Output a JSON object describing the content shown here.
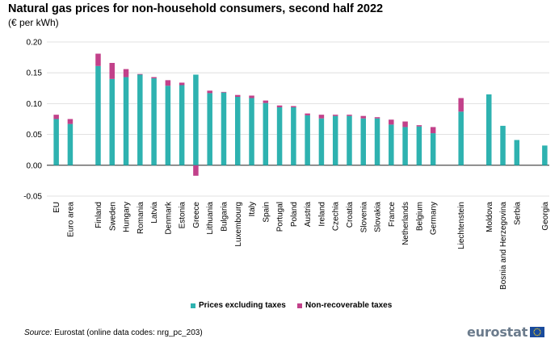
{
  "title": "Natural gas prices for non-household consumers, second half 2022",
  "subtitle": "(€ per kWh)",
  "source_label": "Source:",
  "source_text": " Eurostat (online data codes: nrg_pc_203)",
  "logo_text": "eurostat",
  "chart_data": {
    "type": "bar",
    "stacked": true,
    "ylim": [
      -0.05,
      0.2
    ],
    "yticks": [
      -0.05,
      0.0,
      0.05,
      0.1,
      0.15,
      0.2
    ],
    "ytick_labels": [
      "-0.05",
      "0.00",
      "0.05",
      "0.10",
      "0.15",
      "0.20"
    ],
    "grid": true,
    "legend_position": "bottom",
    "categories": [
      "EU",
      "Euro area",
      "",
      "Finland",
      "Sweden",
      "Hungary",
      "Romania",
      "Latvia",
      "Denmark",
      "Estonia",
      "Greece",
      "Lithuania",
      "Bulgaria",
      "Luxembourg",
      "Italy",
      "Spain",
      "Portugal",
      "Poland",
      "Austria",
      "Ireland",
      "Czechia",
      "Croatia",
      "Slovenia",
      "Slovakia",
      "France",
      "Netherlands",
      "Belgium",
      "Germany",
      "",
      "Liechtenstein",
      "",
      "Moldova",
      "Bosnia and Herzegovina",
      "Serbia",
      "",
      "Georgia"
    ],
    "series": [
      {
        "name": "Prices excluding taxes",
        "color": "#2eb2b0",
        "values": [
          0.075,
          0.067,
          null,
          0.161,
          0.14,
          0.143,
          0.147,
          0.141,
          0.129,
          0.13,
          0.147,
          0.117,
          0.118,
          0.111,
          0.109,
          0.101,
          0.094,
          0.094,
          0.081,
          0.076,
          0.08,
          0.08,
          0.076,
          0.076,
          0.066,
          0.062,
          0.063,
          0.052,
          null,
          0.087,
          null,
          0.115,
          0.064,
          0.041,
          null,
          0.032
        ]
      },
      {
        "name": "Non-recoverable taxes",
        "color": "#c2418a",
        "values": [
          0.007,
          0.008,
          null,
          0.02,
          0.026,
          0.013,
          0.001,
          0.002,
          0.009,
          0.004,
          -0.017,
          0.004,
          0.001,
          0.003,
          0.004,
          0.004,
          0.003,
          0.002,
          0.003,
          0.006,
          0.002,
          0.002,
          0.004,
          0.002,
          0.008,
          0.009,
          0.002,
          0.01,
          null,
          0.022,
          null,
          0.0,
          0.0,
          0.0,
          null,
          0.0
        ]
      }
    ]
  }
}
